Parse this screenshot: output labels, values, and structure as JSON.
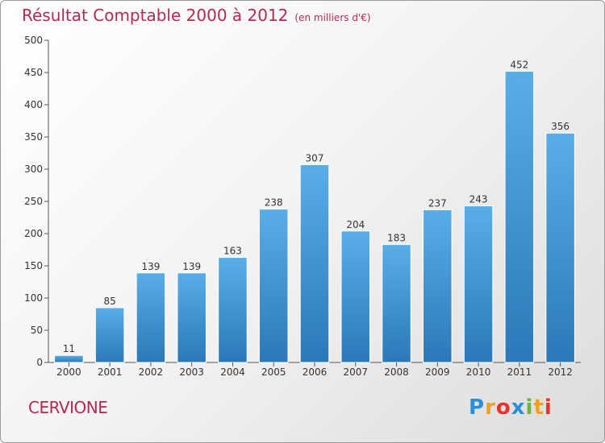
{
  "title": "Résultat Comptable 2000 à 2012",
  "subtitle": "(en milliers d'€)",
  "commune": "CERVIONE",
  "logo": {
    "letters": [
      "P",
      "r",
      "o",
      "x",
      "i",
      "t",
      "i"
    ],
    "colors": [
      "#2a8fd6",
      "#f0a01e",
      "#e8332a",
      "#2a8fd6",
      "#6db33f",
      "#f0a01e",
      "#e8332a"
    ]
  },
  "colors": {
    "bar_top": "#5aaee8",
    "bar_bottom": "#2a78b8",
    "title": "#b5294f"
  },
  "chart_data": {
    "type": "bar",
    "categories": [
      "2000",
      "2001",
      "2002",
      "2003",
      "2004",
      "2005",
      "2006",
      "2007",
      "2008",
      "2009",
      "2010",
      "2011",
      "2012"
    ],
    "values": [
      11,
      85,
      139,
      139,
      163,
      238,
      307,
      204,
      183,
      237,
      243,
      452,
      356
    ],
    "title": "Résultat Comptable 2000 à 2012",
    "subtitle": "(en milliers d'€)",
    "xlabel": "",
    "ylabel": "",
    "ylim": [
      0,
      500
    ],
    "yticks": [
      0,
      50,
      100,
      150,
      200,
      250,
      300,
      350,
      400,
      450,
      500
    ],
    "grid": false,
    "data_labels": true
  }
}
